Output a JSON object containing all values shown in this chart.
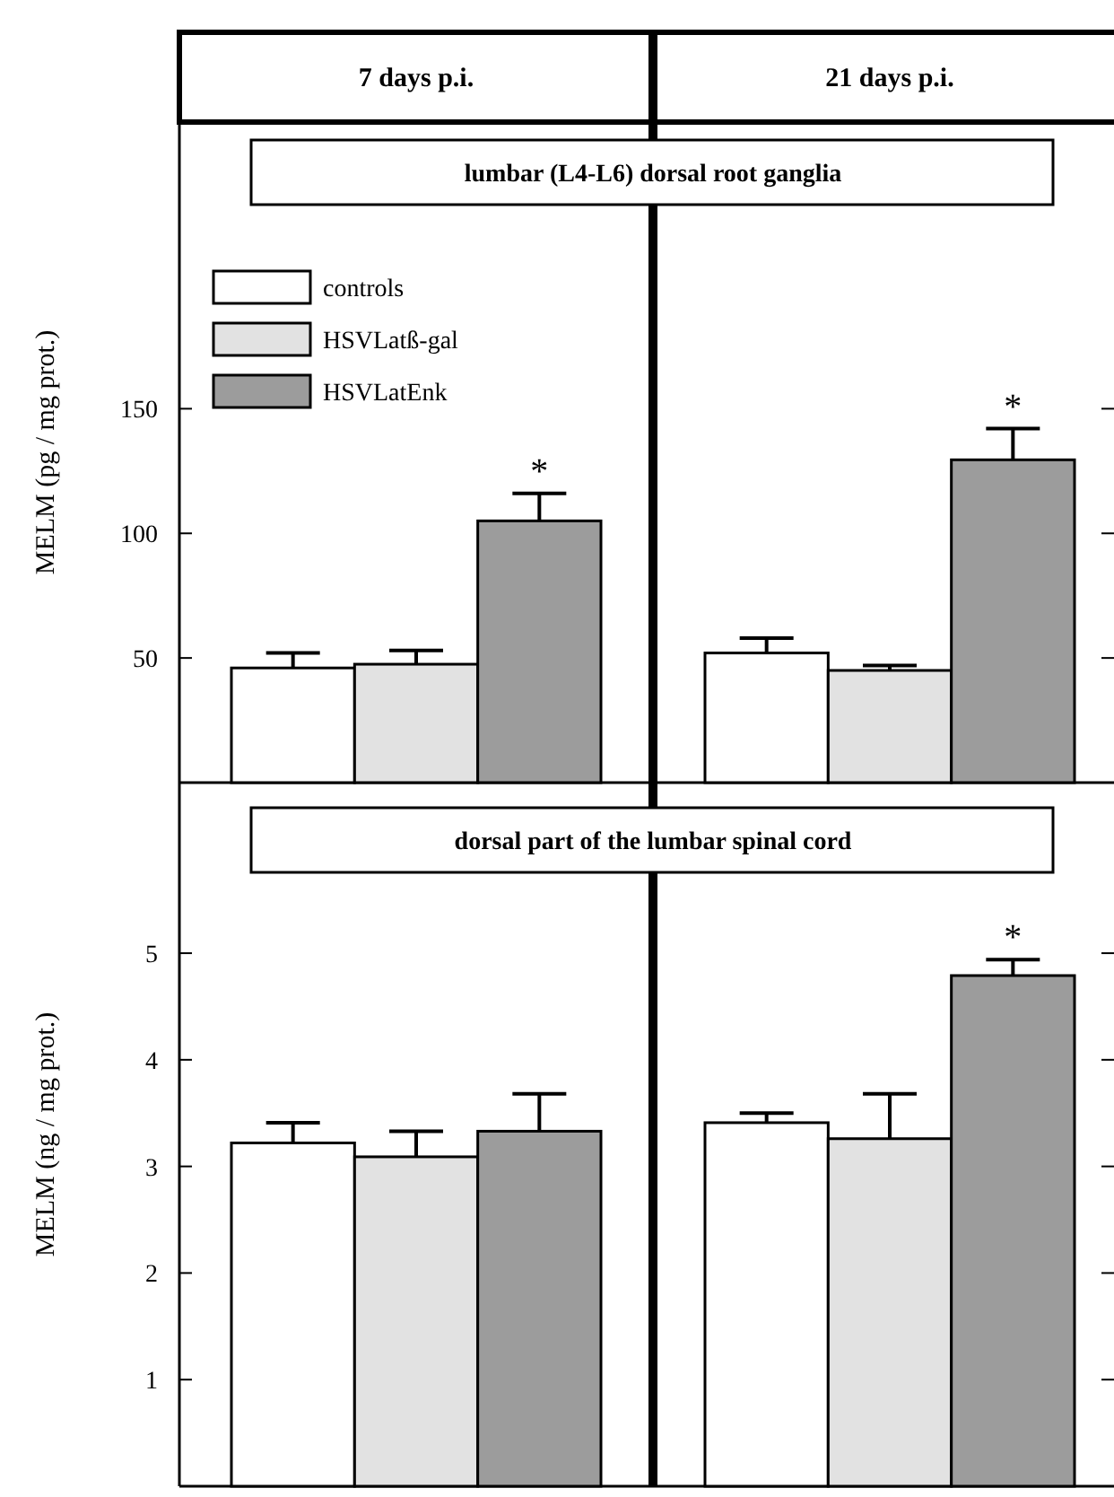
{
  "chart_data": [
    {
      "type": "bar",
      "subtitle": "lumbar (L4-L6) dorsal root ganglia",
      "ylabel": "MELM (pg / mg prot.)",
      "categories": [
        "7 days p.i.",
        "21 days p.i."
      ],
      "ylim": [
        0,
        265
      ],
      "yticks": [
        50,
        100,
        150
      ],
      "legend": "top left",
      "annotations": [
        "*",
        "*"
      ],
      "series": [
        {
          "name": "controls",
          "color": "#ffffff",
          "values": [
            46,
            52
          ],
          "errors": [
            [
              46,
              52
            ],
            [
              52,
              58
            ]
          ]
        },
        {
          "name": "HSVLatß-gal",
          "color": "#e2e2e2",
          "values": [
            47.5,
            45
          ],
          "errors": [
            [
              47.5,
              53
            ],
            [
              45,
              47
            ]
          ]
        },
        {
          "name": "HSVLatEnk",
          "color": "#9c9c9c",
          "values": [
            105,
            129.5
          ],
          "errors": [
            [
              105,
              116
            ],
            [
              129.5,
              142
            ]
          ]
        }
      ]
    },
    {
      "type": "bar",
      "subtitle": "dorsal part of the lumbar spinal cord",
      "ylabel": "MELM (ng / mg prot.)",
      "categories": [
        null,
        null
      ],
      "ylim": [
        0,
        6.6
      ],
      "yticks": [
        1,
        2,
        3,
        4,
        5
      ],
      "tick_labels": "y",
      "annotations": [
        "*"
      ],
      "series": [
        {
          "color": "#ffffff",
          "values": [
            3.22,
            3.41
          ],
          "errors": [
            [
              3.22,
              3.41
            ],
            [
              3.41,
              3.5
            ]
          ]
        },
        {
          "color": "#e2e2e2",
          "values": [
            3.09,
            3.26
          ],
          "errors": [
            [
              3.09,
              3.33
            ],
            [
              3.26,
              3.68
            ]
          ]
        },
        {
          "color": "#9c9c9c",
          "values": [
            3.33,
            4.79
          ],
          "errors": [
            [
              3.33,
              3.68
            ],
            [
              4.79,
              4.94
            ]
          ]
        }
      ]
    }
  ]
}
